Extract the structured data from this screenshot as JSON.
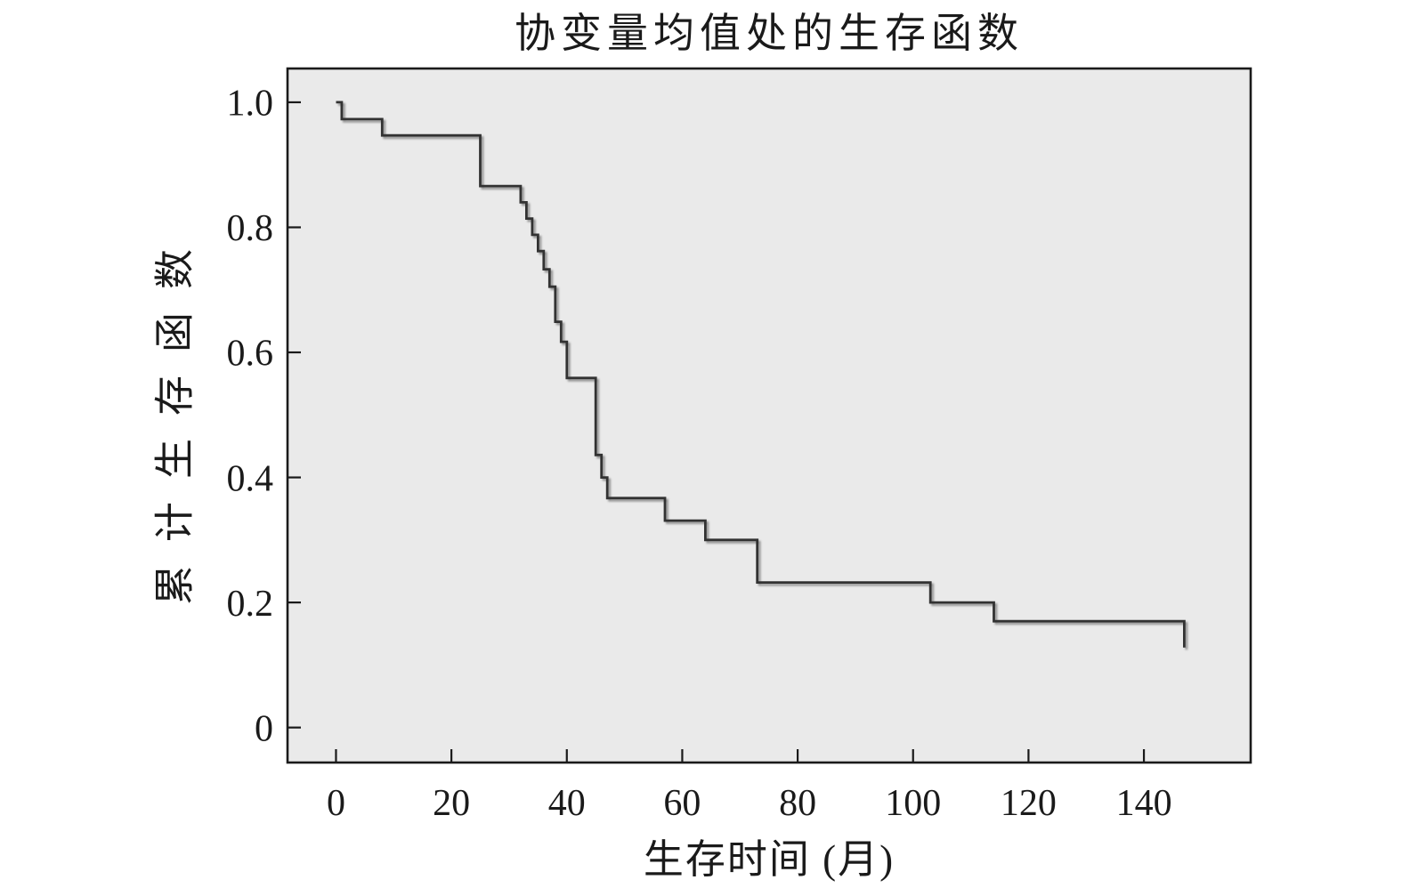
{
  "chart_data": {
    "type": "line",
    "line_style": "step-post",
    "title": "协变量均值处的生存函数",
    "xlabel": "生存时间 (月)",
    "ylabel": "累计生存函数",
    "xlim": [
      -8.4,
      158.5
    ],
    "ylim": [
      -0.056,
      1.054
    ],
    "xticks": [
      0,
      20,
      40,
      60,
      80,
      100,
      120,
      140
    ],
    "yticks": [
      1.0,
      0.8,
      0.6,
      0.4,
      0.2,
      0
    ],
    "xtick_labels": [
      "0",
      "20",
      "40",
      "60",
      "80",
      "100",
      "120",
      "140"
    ],
    "ytick_labels": [
      "1.0",
      "0.8",
      "0.6",
      "0.4",
      "0.2",
      "0"
    ],
    "grid": false,
    "legend": null,
    "tick_direction": "in",
    "series": [
      {
        "name": "survival-curve",
        "points": [
          [
            0,
            1.0
          ],
          [
            1,
            0.973
          ],
          [
            8,
            0.947
          ],
          [
            25,
            0.866
          ],
          [
            32,
            0.84
          ],
          [
            33,
            0.814
          ],
          [
            34,
            0.788
          ],
          [
            35,
            0.762
          ],
          [
            36,
            0.733
          ],
          [
            37,
            0.705
          ],
          [
            38,
            0.649
          ],
          [
            39,
            0.617
          ],
          [
            40,
            0.559
          ],
          [
            45,
            0.436
          ],
          [
            46,
            0.4
          ],
          [
            47,
            0.367
          ],
          [
            57,
            0.331
          ],
          [
            64,
            0.3
          ],
          [
            73,
            0.232
          ],
          [
            103,
            0.2
          ],
          [
            114,
            0.17
          ],
          [
            147,
            0.128
          ]
        ]
      }
    ],
    "colors": {
      "page_background": "#ffffff",
      "plot_background": "#eaeaea",
      "line": "#333333",
      "frame": "#1a1a1a",
      "text": "#1a1a1a"
    }
  }
}
